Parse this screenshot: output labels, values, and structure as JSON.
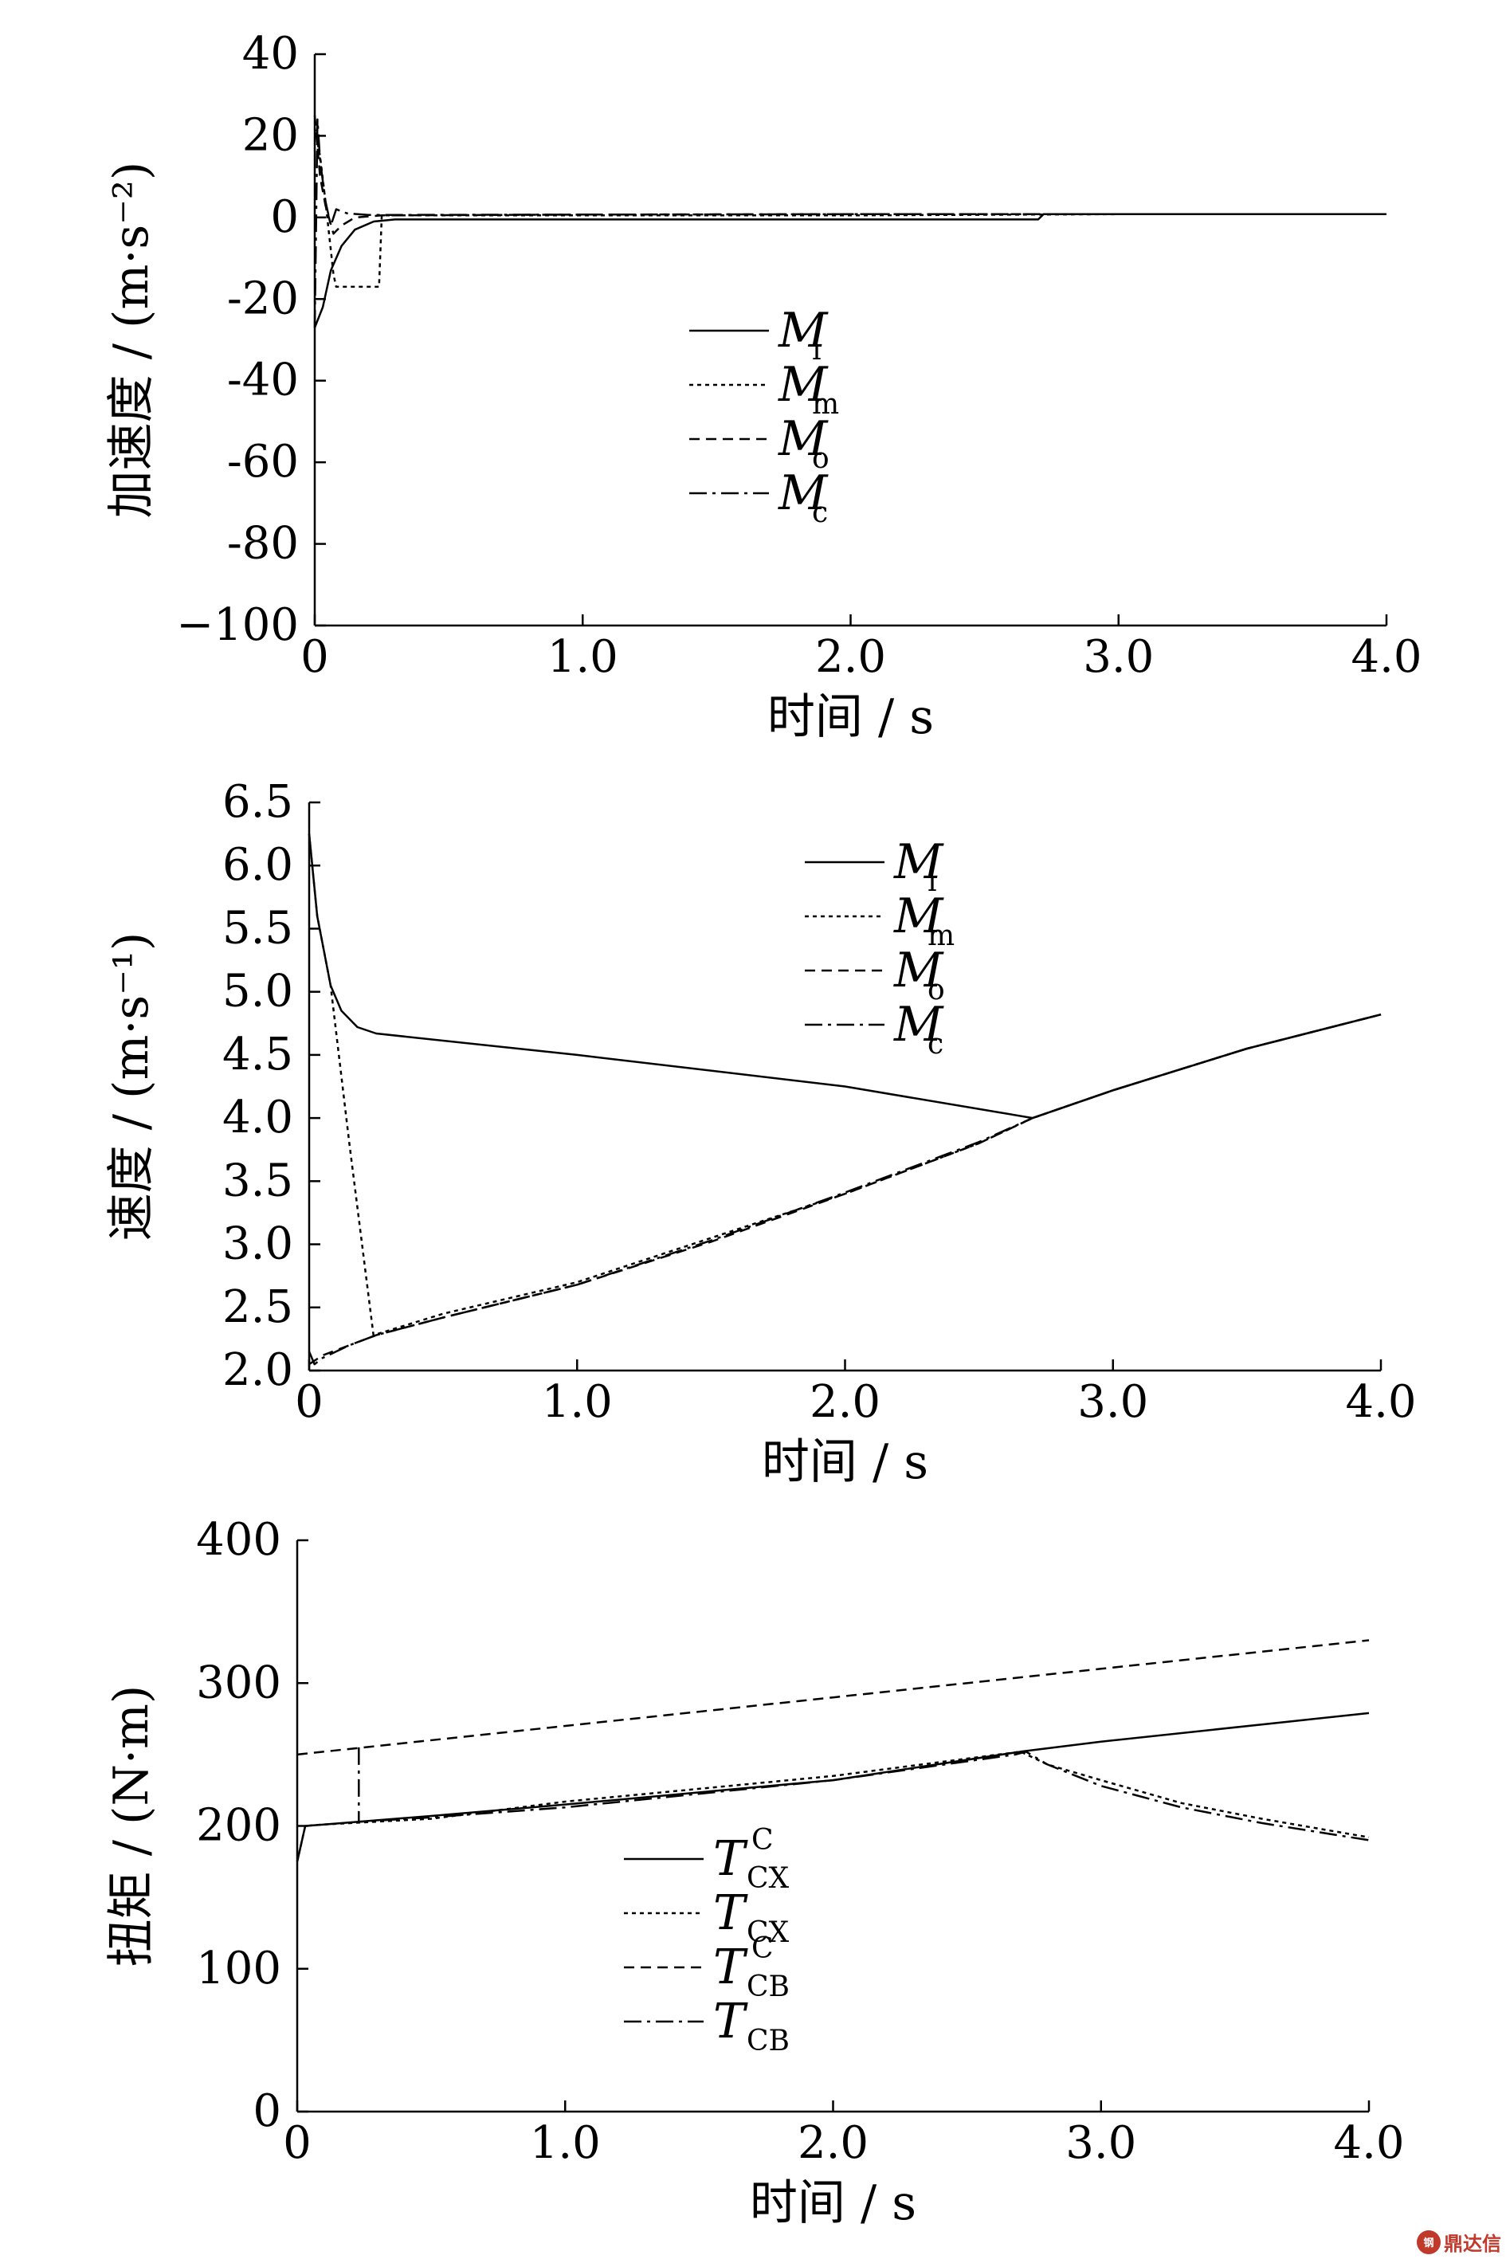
{
  "chart_data": [
    {
      "type": "line",
      "xlabel": "时间 / s",
      "ylabel": "加速度 / (m·s⁻²)",
      "xlim": [
        0,
        4.0
      ],
      "ylim": [
        -100,
        40
      ],
      "xticks": [
        0,
        1.0,
        2.0,
        3.0,
        4.0
      ],
      "xtick_labels": [
        "0",
        "1.0",
        "2.0",
        "3.0",
        "4.0"
      ],
      "yticks": [
        -100,
        -80,
        -60,
        -40,
        -20,
        0,
        20,
        40
      ],
      "ytick_labels": [
        "−100",
        "-80",
        "-60",
        "-40",
        "-20",
        "0",
        "20",
        "40"
      ],
      "grid": false,
      "legend_position": "center-left",
      "series": [
        {
          "name": "M",
          "sub": "i",
          "sup": "",
          "dash": "solid",
          "x": [
            0,
            0.03,
            0.06,
            0.1,
            0.15,
            0.22,
            0.3,
            1.0,
            2.0,
            2.7,
            2.72,
            3.0,
            4.0
          ],
          "y": [
            -27,
            -22,
            -13,
            -7,
            -3,
            -1,
            -0.5,
            -0.5,
            -0.5,
            -0.5,
            0.8,
            0.8,
            0.8
          ]
        },
        {
          "name": "M",
          "sub": "m",
          "sup": "",
          "dash": "dotted",
          "x": [
            0,
            0.02,
            0.04,
            0.06,
            0.07,
            0.08,
            0.24,
            0.25,
            0.3,
            1.0,
            2.0,
            3.0,
            4.0
          ],
          "y": [
            22,
            15,
            4,
            -8,
            -14,
            -17,
            -17,
            0.5,
            0.5,
            0.5,
            0.5,
            0.8,
            0.8
          ]
        },
        {
          "name": "M",
          "sub": "o",
          "sup": "",
          "dash": "dashed",
          "x": [
            0,
            0.02,
            0.04,
            0.07,
            0.1,
            0.15,
            0.25,
            1.0,
            2.0,
            3.0,
            4.0
          ],
          "y": [
            25,
            10,
            3,
            -4,
            -2,
            0,
            0.5,
            0.7,
            0.8,
            0.8,
            0.8
          ]
        },
        {
          "name": "M",
          "sub": "c",
          "sup": "",
          "dash": "dashdot",
          "x": [
            0,
            0.01,
            0.02,
            0.04,
            0.06,
            0.08,
            0.12,
            0.2,
            1.0,
            2.0,
            3.0,
            4.0
          ],
          "y": [
            -27,
            24,
            14,
            4,
            -2,
            2,
            1,
            0.6,
            0.7,
            0.8,
            0.8,
            0.8
          ]
        }
      ]
    },
    {
      "type": "line",
      "xlabel": "时间 / s",
      "ylabel": "速度 / (m·s⁻¹)",
      "xlim": [
        0,
        4.0
      ],
      "ylim": [
        2.0,
        6.5
      ],
      "xticks": [
        0,
        1.0,
        2.0,
        3.0,
        4.0
      ],
      "xtick_labels": [
        "0",
        "1.0",
        "2.0",
        "3.0",
        "4.0"
      ],
      "yticks": [
        2.0,
        2.5,
        3.0,
        3.5,
        4.0,
        4.5,
        5.0,
        5.5,
        6.0,
        6.5
      ],
      "ytick_labels": [
        "2.0",
        "2.5",
        "3.0",
        "3.5",
        "4.0",
        "4.5",
        "5.0",
        "5.5",
        "6.0",
        "6.5"
      ],
      "grid": false,
      "legend_position": "top-center",
      "series": [
        {
          "name": "M",
          "sub": "i",
          "sup": "",
          "dash": "solid",
          "x": [
            0,
            0.03,
            0.08,
            0.12,
            0.18,
            0.25,
            1.0,
            2.0,
            2.7,
            3.0,
            3.5,
            4.0
          ],
          "y": [
            6.25,
            5.6,
            5.05,
            4.85,
            4.72,
            4.67,
            4.5,
            4.25,
            4.0,
            4.22,
            4.55,
            4.82
          ]
        },
        {
          "name": "M",
          "sub": "m",
          "sup": "",
          "dash": "dotted",
          "x": [
            0,
            0.03,
            0.08,
            0.15,
            0.24,
            0.5,
            1.0,
            1.5,
            2.0,
            2.5,
            2.7,
            3.0,
            3.5,
            4.0
          ],
          "y": [
            6.25,
            5.6,
            5.05,
            3.8,
            2.28,
            2.45,
            2.7,
            3.05,
            3.4,
            3.8,
            4.0,
            4.22,
            4.55,
            4.82
          ]
        },
        {
          "name": "M",
          "sub": "o",
          "sup": "",
          "dash": "dashed",
          "x": [
            0,
            0.05,
            0.15,
            0.25,
            0.5,
            1.0,
            1.5,
            2.0,
            2.5,
            2.7,
            3.0,
            3.5,
            4.0
          ],
          "y": [
            2.05,
            2.12,
            2.2,
            2.28,
            2.42,
            2.68,
            3.02,
            3.4,
            3.8,
            4.0,
            4.22,
            4.55,
            4.82
          ]
        },
        {
          "name": "M",
          "sub": "c",
          "sup": "",
          "dash": "dashdot",
          "x": [
            0,
            0.02,
            0.05,
            0.15,
            0.25,
            0.5,
            1.0,
            1.5,
            2.0,
            2.5,
            2.7,
            3.0,
            3.5,
            4.0
          ],
          "y": [
            2.15,
            2.05,
            2.1,
            2.2,
            2.28,
            2.42,
            2.68,
            3.03,
            3.41,
            3.81,
            4.0,
            4.22,
            4.55,
            4.82
          ]
        }
      ]
    },
    {
      "type": "line",
      "xlabel": "时间 / s",
      "ylabel": "扭矩 / (N·m)",
      "xlim": [
        0,
        4.0
      ],
      "ylim": [
        0,
        400
      ],
      "xticks": [
        0,
        1.0,
        2.0,
        3.0,
        4.0
      ],
      "xtick_labels": [
        "0",
        "1.0",
        "2.0",
        "3.0",
        "4.0"
      ],
      "yticks": [
        0,
        100,
        200,
        300,
        400
      ],
      "ytick_labels": [
        "0",
        "100",
        "200",
        "300",
        "400"
      ],
      "grid": false,
      "legend_position": "center-left",
      "series": [
        {
          "name": "T",
          "sub": "CX",
          "sup": "C",
          "dash": "solid",
          "x": [
            0,
            0.03,
            0.1,
            0.5,
            1.0,
            2.0,
            2.7,
            3.0,
            4.0
          ],
          "y": [
            175,
            200,
            201,
            207,
            215,
            232,
            252,
            259,
            279
          ]
        },
        {
          "name": "T",
          "sub": "CX",
          "sup": "",
          "dash": "dotted",
          "x": [
            0,
            0.03,
            0.1,
            0.5,
            1.0,
            2.0,
            2.7,
            2.8,
            3.0,
            3.3,
            3.6,
            4.0
          ],
          "y": [
            175,
            200,
            201,
            205,
            217,
            235,
            252,
            243,
            232,
            216,
            205,
            192
          ]
        },
        {
          "name": "T",
          "sub": "CB",
          "sup": "C",
          "dash": "dashed",
          "x": [
            0,
            1.0,
            2.0,
            3.0,
            4.0
          ],
          "y": [
            250,
            270,
            290,
            310,
            330
          ]
        },
        {
          "name": "T",
          "sub": "CB",
          "sup": "",
          "dash": "dashdot",
          "x": [
            0.23,
            0.23,
            0.24,
            0.5,
            1.0,
            2.0,
            2.68,
            2.72,
            2.8,
            3.0,
            3.3,
            3.6,
            4.0
          ],
          "y": [
            255,
            203,
            203,
            206,
            213,
            232,
            250,
            252,
            243,
            228,
            213,
            202,
            190
          ]
        }
      ]
    }
  ],
  "watermark": {
    "badge": "钢",
    "text": "鼎达信"
  }
}
